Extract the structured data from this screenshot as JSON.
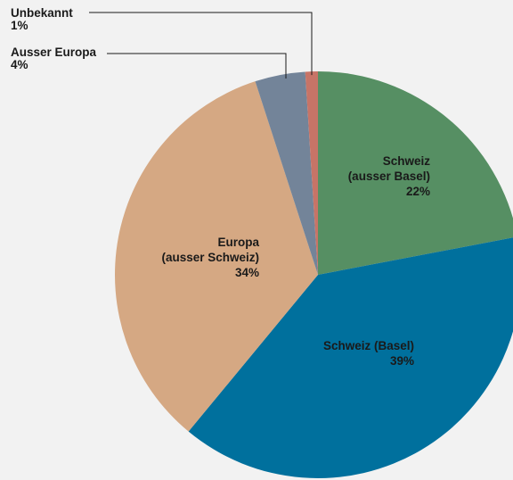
{
  "chart_data": {
    "type": "pie",
    "title": "",
    "start_angle_deg": 0,
    "direction": "clockwise",
    "slices": [
      {
        "label_lines": [
          "Schweiz",
          "(ausser Basel)"
        ],
        "value_label": "22%",
        "value": 22,
        "color": "#568f63"
      },
      {
        "label_lines": [
          "Schweiz (Basel)"
        ],
        "value_label": "39%",
        "value": 39,
        "color": "#00709d"
      },
      {
        "label_lines": [
          "Europa",
          "(ausser Schweiz)"
        ],
        "value_label": "34%",
        "value": 34,
        "color": "#d5a883"
      },
      {
        "label_lines": [
          "Ausser Europa"
        ],
        "value_label": "4%",
        "value": 4,
        "color": "#738499"
      },
      {
        "label_lines": [
          "Unbekannt"
        ],
        "value_label": "1%",
        "value": 1,
        "color": "#c77467"
      }
    ]
  }
}
